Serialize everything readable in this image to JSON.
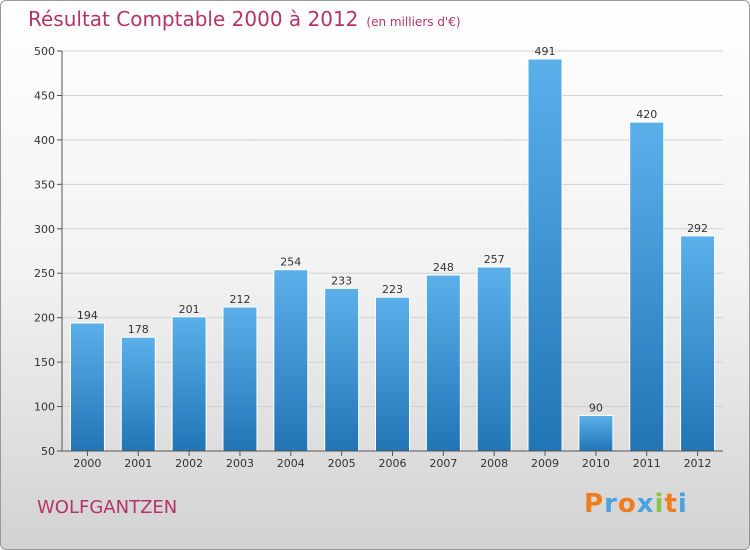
{
  "title": {
    "main": "Résultat Comptable 2000 à 2012",
    "unit": "(en milliers d'€)"
  },
  "commune": "WOLFGANTZEN",
  "logo": {
    "text": "Proxiti",
    "letter_colors": [
      "#f07c1c",
      "#4aa3df",
      "#f07c1c",
      "#4aa3df",
      "#8bc34a",
      "#f07c1c",
      "#4aa3df"
    ]
  },
  "colors": {
    "bar_top": "#5bb0ea",
    "bar_bottom": "#2275b5",
    "title": "#b5336b"
  },
  "chart_data": {
    "type": "bar",
    "title": "Résultat Comptable 2000 à 2012",
    "ylabel": "(en milliers d'€)",
    "xlabel": "",
    "categories": [
      "2000",
      "2001",
      "2002",
      "2003",
      "2004",
      "2005",
      "2006",
      "2007",
      "2008",
      "2009",
      "2010",
      "2011",
      "2012"
    ],
    "values": [
      194,
      178,
      201,
      212,
      254,
      233,
      223,
      248,
      257,
      491,
      90,
      420,
      292
    ],
    "ylim": [
      50,
      500
    ],
    "yticks": [
      50,
      100,
      150,
      200,
      250,
      300,
      350,
      400,
      450,
      500
    ],
    "grid": true
  }
}
